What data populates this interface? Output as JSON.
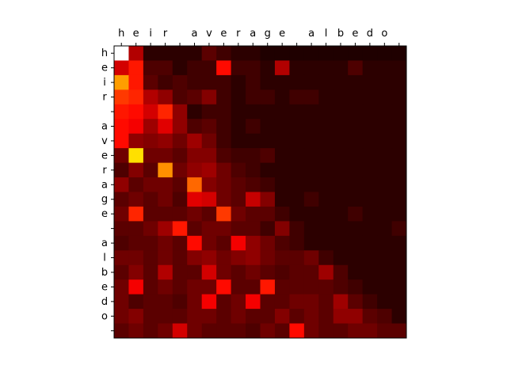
{
  "chart_data": {
    "type": "heatmap",
    "title": "",
    "xlabel": "",
    "ylabel": "",
    "x_tick_labels": [
      "h",
      "e",
      "i",
      "r",
      "",
      "a",
      "v",
      "e",
      "r",
      "a",
      "g",
      "e",
      "",
      "a",
      "l",
      "b",
      "e",
      "d",
      "o",
      ""
    ],
    "y_tick_labels": [
      "h",
      "e",
      "i",
      "r",
      "",
      "a",
      "v",
      "e",
      "r",
      "a",
      "g",
      "e",
      "",
      "a",
      "l",
      "b",
      "e",
      "d",
      "o",
      ""
    ],
    "x_axis_position": "top",
    "colormap": "hot",
    "value_range": [
      0,
      1
    ],
    "grid": false,
    "values": [
      [
        1.0,
        0.25,
        0.05,
        0.05,
        0.05,
        0.05,
        0.12,
        0.08,
        0.05,
        0.05,
        0.03,
        0.03,
        0.03,
        0.03,
        0.03,
        0.03,
        0.03,
        0.03,
        0.03,
        0.03
      ],
      [
        0.3,
        0.4,
        0.1,
        0.1,
        0.05,
        0.08,
        0.08,
        0.38,
        0.08,
        0.08,
        0.05,
        0.25,
        0.05,
        0.05,
        0.05,
        0.05,
        0.1,
        0.05,
        0.05,
        0.05
      ],
      [
        0.6,
        0.4,
        0.12,
        0.08,
        0.1,
        0.08,
        0.08,
        0.08,
        0.05,
        0.08,
        0.05,
        0.05,
        0.05,
        0.05,
        0.05,
        0.05,
        0.05,
        0.05,
        0.05,
        0.05
      ],
      [
        0.45,
        0.42,
        0.25,
        0.2,
        0.1,
        0.12,
        0.18,
        0.08,
        0.05,
        0.08,
        0.08,
        0.05,
        0.08,
        0.08,
        0.05,
        0.05,
        0.05,
        0.05,
        0.05,
        0.05
      ],
      [
        0.4,
        0.38,
        0.3,
        0.42,
        0.2,
        0.05,
        0.08,
        0.08,
        0.05,
        0.05,
        0.05,
        0.05,
        0.05,
        0.05,
        0.05,
        0.05,
        0.05,
        0.05,
        0.05,
        0.05
      ],
      [
        0.38,
        0.35,
        0.22,
        0.32,
        0.2,
        0.1,
        0.12,
        0.08,
        0.05,
        0.08,
        0.05,
        0.05,
        0.05,
        0.05,
        0.05,
        0.05,
        0.05,
        0.05,
        0.05,
        0.05
      ],
      [
        0.38,
        0.2,
        0.18,
        0.2,
        0.15,
        0.22,
        0.15,
        0.08,
        0.05,
        0.05,
        0.05,
        0.05,
        0.05,
        0.05,
        0.05,
        0.05,
        0.05,
        0.05,
        0.05,
        0.05
      ],
      [
        0.15,
        0.7,
        0.15,
        0.15,
        0.12,
        0.18,
        0.18,
        0.1,
        0.08,
        0.08,
        0.1,
        0.05,
        0.05,
        0.05,
        0.05,
        0.05,
        0.05,
        0.05,
        0.05,
        0.05
      ],
      [
        0.1,
        0.18,
        0.12,
        0.58,
        0.15,
        0.2,
        0.22,
        0.15,
        0.1,
        0.08,
        0.05,
        0.05,
        0.05,
        0.05,
        0.05,
        0.05,
        0.05,
        0.05,
        0.05,
        0.05
      ],
      [
        0.2,
        0.12,
        0.15,
        0.15,
        0.12,
        0.52,
        0.18,
        0.15,
        0.12,
        0.1,
        0.08,
        0.05,
        0.05,
        0.05,
        0.05,
        0.05,
        0.05,
        0.05,
        0.05,
        0.05
      ],
      [
        0.12,
        0.15,
        0.12,
        0.15,
        0.1,
        0.32,
        0.3,
        0.15,
        0.12,
        0.28,
        0.18,
        0.05,
        0.05,
        0.08,
        0.05,
        0.05,
        0.05,
        0.05,
        0.05,
        0.05
      ],
      [
        0.15,
        0.42,
        0.12,
        0.12,
        0.12,
        0.15,
        0.12,
        0.45,
        0.15,
        0.12,
        0.12,
        0.08,
        0.05,
        0.05,
        0.05,
        0.05,
        0.08,
        0.05,
        0.05,
        0.05
      ],
      [
        0.12,
        0.12,
        0.15,
        0.22,
        0.4,
        0.12,
        0.15,
        0.15,
        0.12,
        0.12,
        0.08,
        0.18,
        0.08,
        0.05,
        0.05,
        0.05,
        0.05,
        0.05,
        0.05,
        0.08
      ],
      [
        0.1,
        0.12,
        0.12,
        0.15,
        0.12,
        0.38,
        0.15,
        0.12,
        0.35,
        0.2,
        0.15,
        0.1,
        0.08,
        0.05,
        0.05,
        0.05,
        0.05,
        0.05,
        0.05,
        0.05
      ],
      [
        0.15,
        0.15,
        0.12,
        0.15,
        0.12,
        0.18,
        0.2,
        0.15,
        0.18,
        0.2,
        0.15,
        0.12,
        0.12,
        0.15,
        0.08,
        0.05,
        0.05,
        0.05,
        0.05,
        0.05
      ],
      [
        0.12,
        0.18,
        0.12,
        0.25,
        0.12,
        0.12,
        0.3,
        0.15,
        0.12,
        0.15,
        0.12,
        0.1,
        0.12,
        0.12,
        0.22,
        0.1,
        0.05,
        0.05,
        0.05,
        0.05
      ],
      [
        0.15,
        0.35,
        0.12,
        0.15,
        0.12,
        0.15,
        0.15,
        0.38,
        0.12,
        0.12,
        0.4,
        0.12,
        0.12,
        0.12,
        0.12,
        0.1,
        0.08,
        0.05,
        0.05,
        0.05
      ],
      [
        0.15,
        0.1,
        0.12,
        0.12,
        0.1,
        0.15,
        0.35,
        0.12,
        0.15,
        0.35,
        0.12,
        0.12,
        0.15,
        0.15,
        0.12,
        0.22,
        0.12,
        0.08,
        0.05,
        0.05
      ],
      [
        0.15,
        0.18,
        0.12,
        0.12,
        0.12,
        0.15,
        0.15,
        0.12,
        0.15,
        0.12,
        0.12,
        0.18,
        0.12,
        0.15,
        0.12,
        0.2,
        0.2,
        0.12,
        0.1,
        0.05
      ],
      [
        0.12,
        0.15,
        0.12,
        0.15,
        0.3,
        0.15,
        0.12,
        0.12,
        0.12,
        0.1,
        0.15,
        0.12,
        0.38,
        0.15,
        0.12,
        0.12,
        0.15,
        0.15,
        0.12,
        0.12
      ]
    ]
  }
}
